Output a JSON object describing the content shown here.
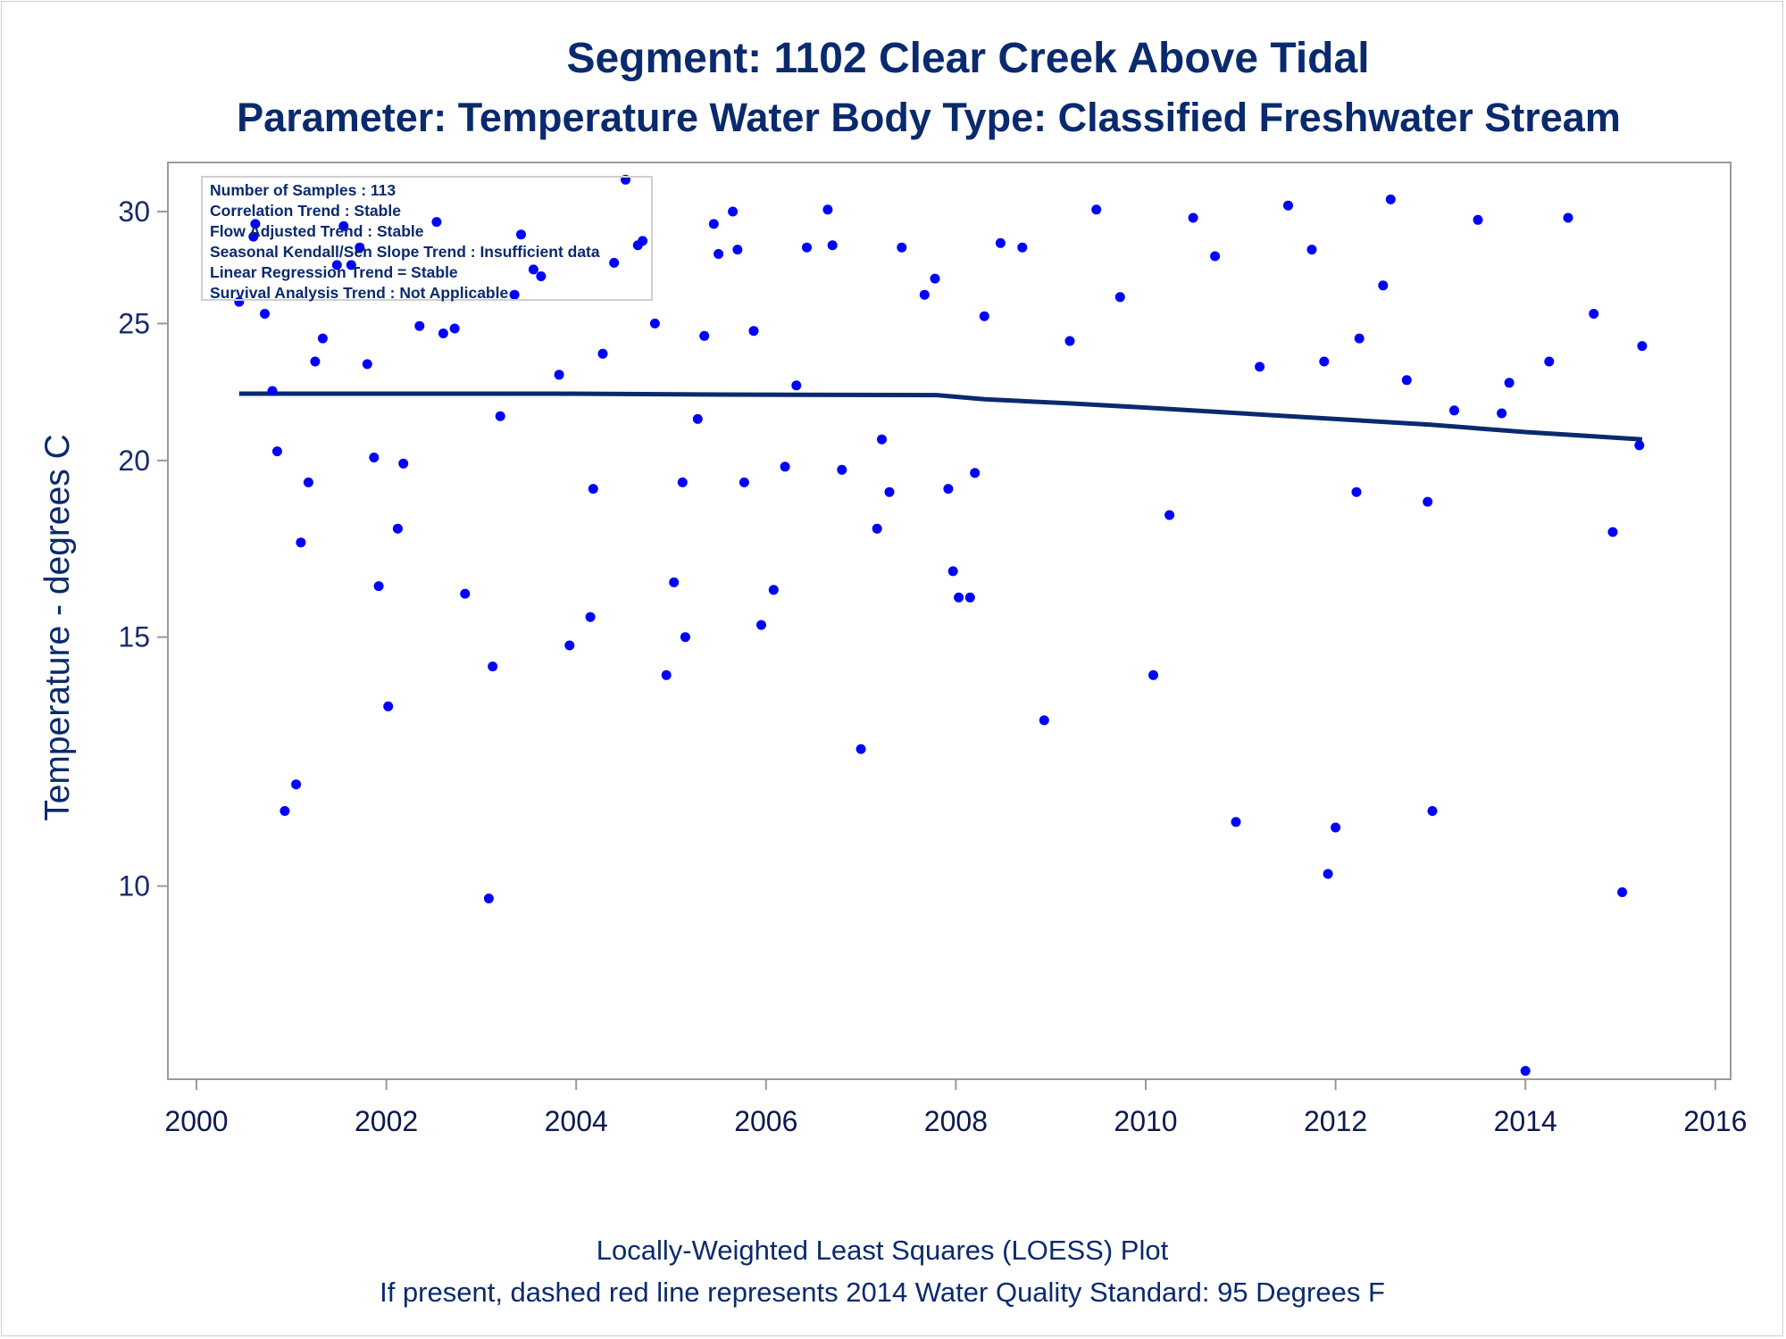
{
  "title": "Segment: 1102  Clear Creek Above Tidal",
  "subtitle": "Parameter: Temperature   Water Body Type: Classified Freshwater Stream",
  "footnote1": "Locally-Weighted Least Squares (LOESS) Plot",
  "footnote2": "If present, dashed red line represents 2014 Water Quality Standard: 95   Degrees F",
  "info": {
    "samples": "Number of Samples : 113",
    "correlation": "Correlation Trend : Stable",
    "flow": "Flow Adjusted Trend : Stable",
    "seasonal": "Seasonal Kendall/Sen Slope Trend : Insufficient data",
    "linear": "Linear Regression Trend = Stable",
    "survival": "Survival Analysis Trend : Not Applicable"
  },
  "colors": {
    "text": "#0a2a6e",
    "points": "#0000ff",
    "loess": "#0a2a6e",
    "axis": "#9a9a9a"
  },
  "chart_data": {
    "type": "scatter",
    "xlabel": "",
    "ylabel": "Temperature - degrees C",
    "y_scale": "log",
    "xlim": [
      2000,
      2016
    ],
    "ylim": [
      7.3,
      32.5
    ],
    "x_ticks": [
      2000,
      2002,
      2004,
      2006,
      2008,
      2010,
      2012,
      2014,
      2016
    ],
    "y_ticks": [
      10,
      15,
      20,
      25,
      30
    ],
    "grid": false,
    "series": [
      {
        "type": "scatter",
        "points": [
          [
            2000.45,
            25.9
          ],
          [
            2000.6,
            28.8
          ],
          [
            2000.62,
            29.4
          ],
          [
            2000.72,
            25.4
          ],
          [
            2000.8,
            22.4
          ],
          [
            2000.85,
            20.3
          ],
          [
            2000.93,
            11.3
          ],
          [
            2001.05,
            11.8
          ],
          [
            2001.1,
            17.5
          ],
          [
            2001.18,
            19.3
          ],
          [
            2001.25,
            23.5
          ],
          [
            2001.33,
            24.4
          ],
          [
            2001.48,
            27.5
          ],
          [
            2001.55,
            29.3
          ],
          [
            2001.63,
            27.5
          ],
          [
            2001.72,
            28.3
          ],
          [
            2001.8,
            23.4
          ],
          [
            2001.87,
            20.1
          ],
          [
            2001.92,
            16.3
          ],
          [
            2002.02,
            13.4
          ],
          [
            2002.12,
            17.9
          ],
          [
            2002.18,
            19.9
          ],
          [
            2002.35,
            24.9
          ],
          [
            2002.53,
            29.5
          ],
          [
            2002.6,
            24.6
          ],
          [
            2002.72,
            24.8
          ],
          [
            2002.83,
            16.1
          ],
          [
            2003.08,
            9.8
          ],
          [
            2003.12,
            14.3
          ],
          [
            2003.2,
            21.5
          ],
          [
            2003.35,
            26.2
          ],
          [
            2003.42,
            28.9
          ],
          [
            2003.55,
            27.3
          ],
          [
            2003.63,
            27.0
          ],
          [
            2003.82,
            23.0
          ],
          [
            2003.93,
            14.8
          ],
          [
            2004.15,
            15.5
          ],
          [
            2004.18,
            19.1
          ],
          [
            2004.28,
            23.8
          ],
          [
            2004.4,
            27.6
          ],
          [
            2004.52,
            31.6
          ],
          [
            2004.65,
            28.4
          ],
          [
            2004.7,
            28.6
          ],
          [
            2004.83,
            25.0
          ],
          [
            2004.95,
            14.1
          ],
          [
            2005.03,
            16.4
          ],
          [
            2005.12,
            19.3
          ],
          [
            2005.15,
            15.0
          ],
          [
            2005.28,
            21.4
          ],
          [
            2005.35,
            24.5
          ],
          [
            2005.45,
            29.4
          ],
          [
            2005.5,
            28.0
          ],
          [
            2005.65,
            30.0
          ],
          [
            2005.7,
            28.2
          ],
          [
            2005.77,
            19.3
          ],
          [
            2005.87,
            24.7
          ],
          [
            2005.95,
            15.3
          ],
          [
            2006.08,
            16.2
          ],
          [
            2006.2,
            19.8
          ],
          [
            2006.32,
            22.6
          ],
          [
            2006.43,
            28.3
          ],
          [
            2006.65,
            30.1
          ],
          [
            2006.7,
            28.4
          ],
          [
            2006.8,
            19.7
          ],
          [
            2007.0,
            12.5
          ],
          [
            2007.17,
            17.9
          ],
          [
            2007.22,
            20.7
          ],
          [
            2007.3,
            19.0
          ],
          [
            2007.43,
            28.3
          ],
          [
            2007.67,
            26.2
          ],
          [
            2007.78,
            26.9
          ],
          [
            2007.92,
            19.1
          ],
          [
            2007.97,
            16.7
          ],
          [
            2008.03,
            16.0
          ],
          [
            2008.15,
            16.0
          ],
          [
            2008.2,
            19.6
          ],
          [
            2008.3,
            25.3
          ],
          [
            2008.47,
            28.5
          ],
          [
            2008.7,
            28.3
          ],
          [
            2008.93,
            13.1
          ],
          [
            2009.2,
            24.3
          ],
          [
            2009.48,
            30.1
          ],
          [
            2009.73,
            26.1
          ],
          [
            2010.08,
            14.1
          ],
          [
            2010.25,
            18.3
          ],
          [
            2010.5,
            29.7
          ],
          [
            2010.73,
            27.9
          ],
          [
            2010.95,
            11.1
          ],
          [
            2011.2,
            23.3
          ],
          [
            2011.5,
            30.3
          ],
          [
            2011.75,
            28.2
          ],
          [
            2011.88,
            23.5
          ],
          [
            2011.92,
            10.2
          ],
          [
            2012.0,
            11.0
          ],
          [
            2012.22,
            19.0
          ],
          [
            2012.25,
            24.4
          ],
          [
            2012.5,
            26.6
          ],
          [
            2012.58,
            30.6
          ],
          [
            2012.75,
            22.8
          ],
          [
            2012.97,
            18.7
          ],
          [
            2013.02,
            11.3
          ],
          [
            2013.25,
            21.7
          ],
          [
            2013.5,
            29.6
          ],
          [
            2013.75,
            21.6
          ],
          [
            2013.83,
            22.7
          ],
          [
            2014.0,
            7.4
          ],
          [
            2014.25,
            23.5
          ],
          [
            2014.45,
            29.7
          ],
          [
            2014.72,
            25.4
          ],
          [
            2014.92,
            17.8
          ],
          [
            2015.02,
            9.9
          ],
          [
            2015.2,
            20.5
          ],
          [
            2015.23,
            24.1
          ]
        ]
      },
      {
        "type": "line",
        "points": [
          [
            2000.45,
            22.3
          ],
          [
            2003.8,
            22.3
          ],
          [
            2005.5,
            22.27
          ],
          [
            2007.8,
            22.25
          ],
          [
            2008.3,
            22.1
          ],
          [
            2009.2,
            21.95
          ],
          [
            2010.0,
            21.8
          ],
          [
            2011.0,
            21.6
          ],
          [
            2012.0,
            21.4
          ],
          [
            2013.0,
            21.2
          ],
          [
            2014.0,
            20.95
          ],
          [
            2015.23,
            20.7
          ]
        ]
      }
    ]
  }
}
